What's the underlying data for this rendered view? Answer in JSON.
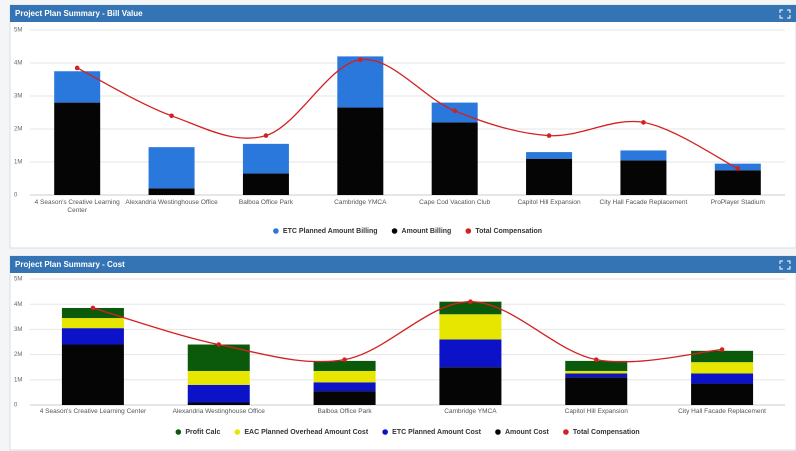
{
  "chart_data": [
    {
      "type": "bar",
      "stacked": true,
      "title": "Project Plan Summary - Bill Value",
      "categories": [
        "4 Season's Creative Learning Center",
        "Alexandria Westinghouse Office",
        "Balboa Office Park",
        "Cambridge YMCA",
        "Cape Cod Vacation Club",
        "Capitol Hill Expansion",
        "City Hall Facade Replacement",
        "ProPlayer Stadium"
      ],
      "series": [
        {
          "name": "ETC Planned Amount Billing",
          "type": "bar",
          "color": "#2a78dc",
          "values": [
            950000,
            1250000,
            900000,
            1550000,
            600000,
            200000,
            300000,
            200000
          ]
        },
        {
          "name": "Amount Billing",
          "type": "bar",
          "color": "#050505",
          "values": [
            2800000,
            200000,
            650000,
            2650000,
            2200000,
            1100000,
            1050000,
            750000
          ]
        },
        {
          "name": "Total Compensation",
          "type": "line",
          "color": "#d42020",
          "values": [
            3850000,
            2400000,
            1800000,
            4100000,
            2550000,
            1800000,
            2200000,
            800000
          ]
        }
      ],
      "ylim": [
        0,
        5000000
      ],
      "yticks": [
        0,
        {
          "value": 1000000,
          "label": "1M"
        },
        {
          "value": 2000000,
          "label": "2M"
        },
        {
          "value": 3000000,
          "label": "3M"
        },
        {
          "value": 4000000,
          "label": "4M"
        },
        {
          "value": 5000000,
          "label": "5M"
        }
      ],
      "grid": true,
      "legend": "bottom"
    },
    {
      "type": "bar",
      "stacked": true,
      "title": "Project Plan Summary - Cost",
      "categories": [
        "4 Season's Creative Learning Center",
        "Alexandria Westinghouse Office",
        "Balboa Office Park",
        "Cambridge YMCA",
        "Capitol Hill Expansion",
        "City Hall Facade Replacement"
      ],
      "series": [
        {
          "name": "Profit Calc",
          "type": "bar",
          "color": "#0b5a0b",
          "values": [
            400000,
            1050000,
            400000,
            500000,
            400000,
            450000
          ]
        },
        {
          "name": "EAC Planned Overhead Amount Cost",
          "type": "bar",
          "color": "#e6e600",
          "values": [
            400000,
            550000,
            450000,
            1000000,
            100000,
            450000
          ]
        },
        {
          "name": "ETC Planned Amount Cost",
          "type": "bar",
          "color": "#0c12c8",
          "values": [
            650000,
            700000,
            350000,
            1100000,
            150000,
            400000
          ]
        },
        {
          "name": "Amount Cost",
          "type": "bar",
          "color": "#050505",
          "values": [
            2400000,
            100000,
            550000,
            1500000,
            1100000,
            850000
          ]
        },
        {
          "name": "Total Compensation",
          "type": "line",
          "color": "#d42020",
          "values": [
            3850000,
            2400000,
            1800000,
            4100000,
            1800000,
            2200000
          ]
        }
      ],
      "ylim": [
        0,
        5000000
      ],
      "yticks": [
        0,
        {
          "value": 1000000,
          "label": "1M"
        },
        {
          "value": 2000000,
          "label": "2M"
        },
        {
          "value": 3000000,
          "label": "3M"
        },
        {
          "value": 4000000,
          "label": "4M"
        },
        {
          "value": 5000000,
          "label": "5M"
        }
      ],
      "grid": true,
      "legend": "bottom"
    }
  ]
}
